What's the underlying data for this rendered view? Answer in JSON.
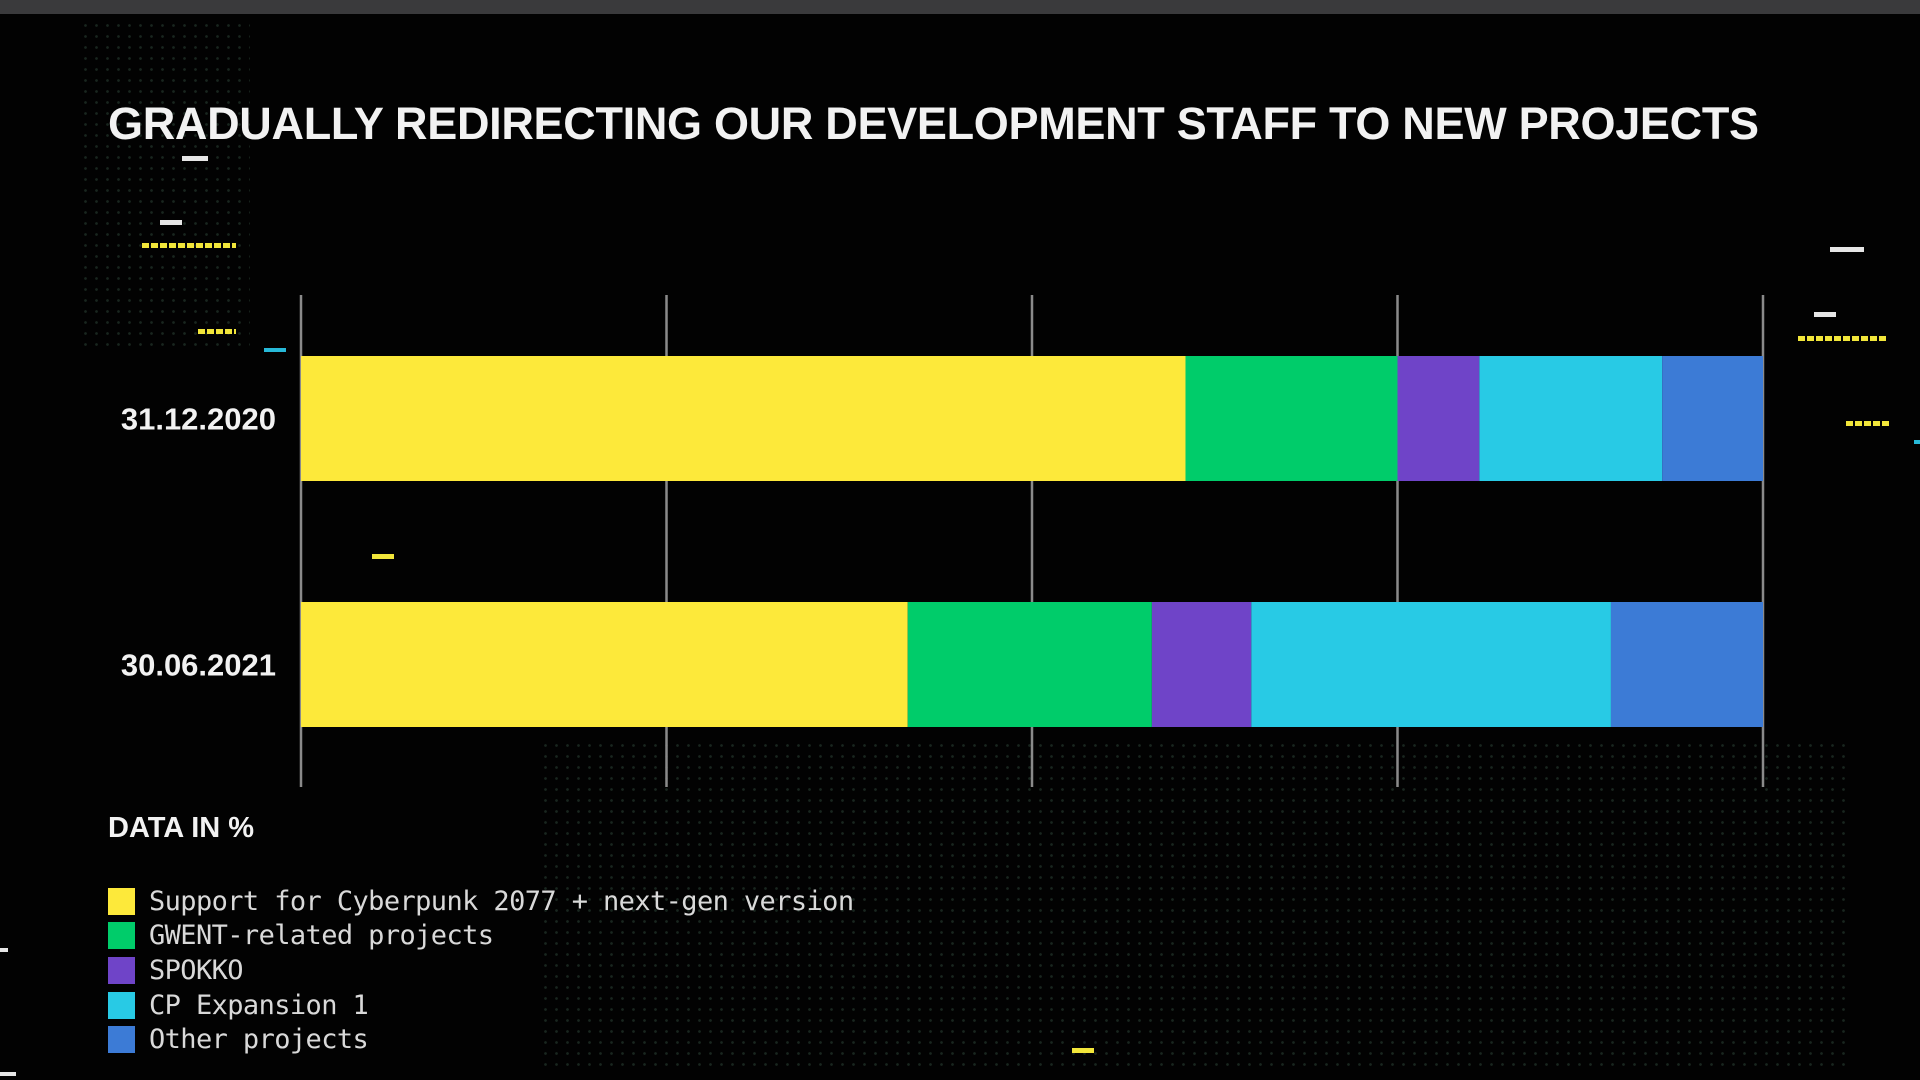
{
  "colors": {
    "background": "#020202",
    "text": "#f2f2f2",
    "grid": "#8a8a8a"
  },
  "chart_data": {
    "type": "bar",
    "orientation": "horizontal",
    "stacked": true,
    "title": "GRADUALLY REDIRECTING OUR DEVELOPMENT STAFF TO NEW PROJECTS",
    "note": "DATA IN %",
    "xlim": [
      0,
      100
    ],
    "grid": true,
    "legend_position": "bottom-left",
    "categories": [
      "31.12.2020",
      "30.06.2021"
    ],
    "series": [
      {
        "name": "Support for Cyberpunk 2077 + next-gen version",
        "color": "#fde93a",
        "values": [
          60.5,
          41.5
        ]
      },
      {
        "name": "GWENT-related projects",
        "color": "#00cc6a",
        "values": [
          14.5,
          16.7
        ]
      },
      {
        "name": "SPOKKO",
        "color": "#6f44c8",
        "values": [
          5.6,
          6.8
        ]
      },
      {
        "name": "CP Expansion 1",
        "color": "#28cae5",
        "values": [
          12.5,
          24.6
        ]
      },
      {
        "name": "Other projects",
        "color": "#3c7bd6",
        "values": [
          6.9,
          10.4
        ]
      }
    ]
  }
}
